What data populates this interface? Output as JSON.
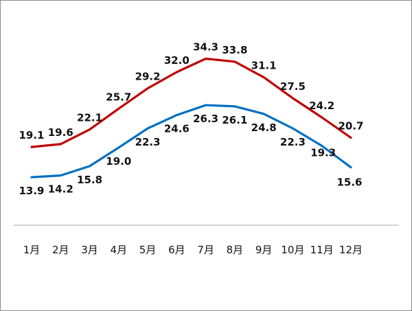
{
  "chart_data": {
    "type": "line",
    "categories": [
      "1月",
      "2月",
      "3月",
      "4月",
      "5月",
      "6月",
      "7月",
      "8月",
      "9月",
      "10月",
      "11月",
      "12月"
    ],
    "series": [
      {
        "values": [
          19.1,
          19.6,
          22.1,
          25.7,
          29.2,
          32.0,
          34.3,
          33.8,
          31.1,
          27.5,
          24.2,
          20.7
        ],
        "color": "#c00000",
        "label_position": "above"
      },
      {
        "values": [
          13.9,
          14.2,
          15.8,
          19.0,
          22.3,
          24.6,
          26.3,
          26.1,
          24.8,
          22.3,
          19.3,
          15.6
        ],
        "color": "#0070c0",
        "label_position": "below"
      }
    ],
    "title": "",
    "xlabel": "",
    "ylabel": "",
    "y_axis_visible": false,
    "grid": false,
    "legend": "none",
    "baseline_color": "#a6a6a6"
  }
}
